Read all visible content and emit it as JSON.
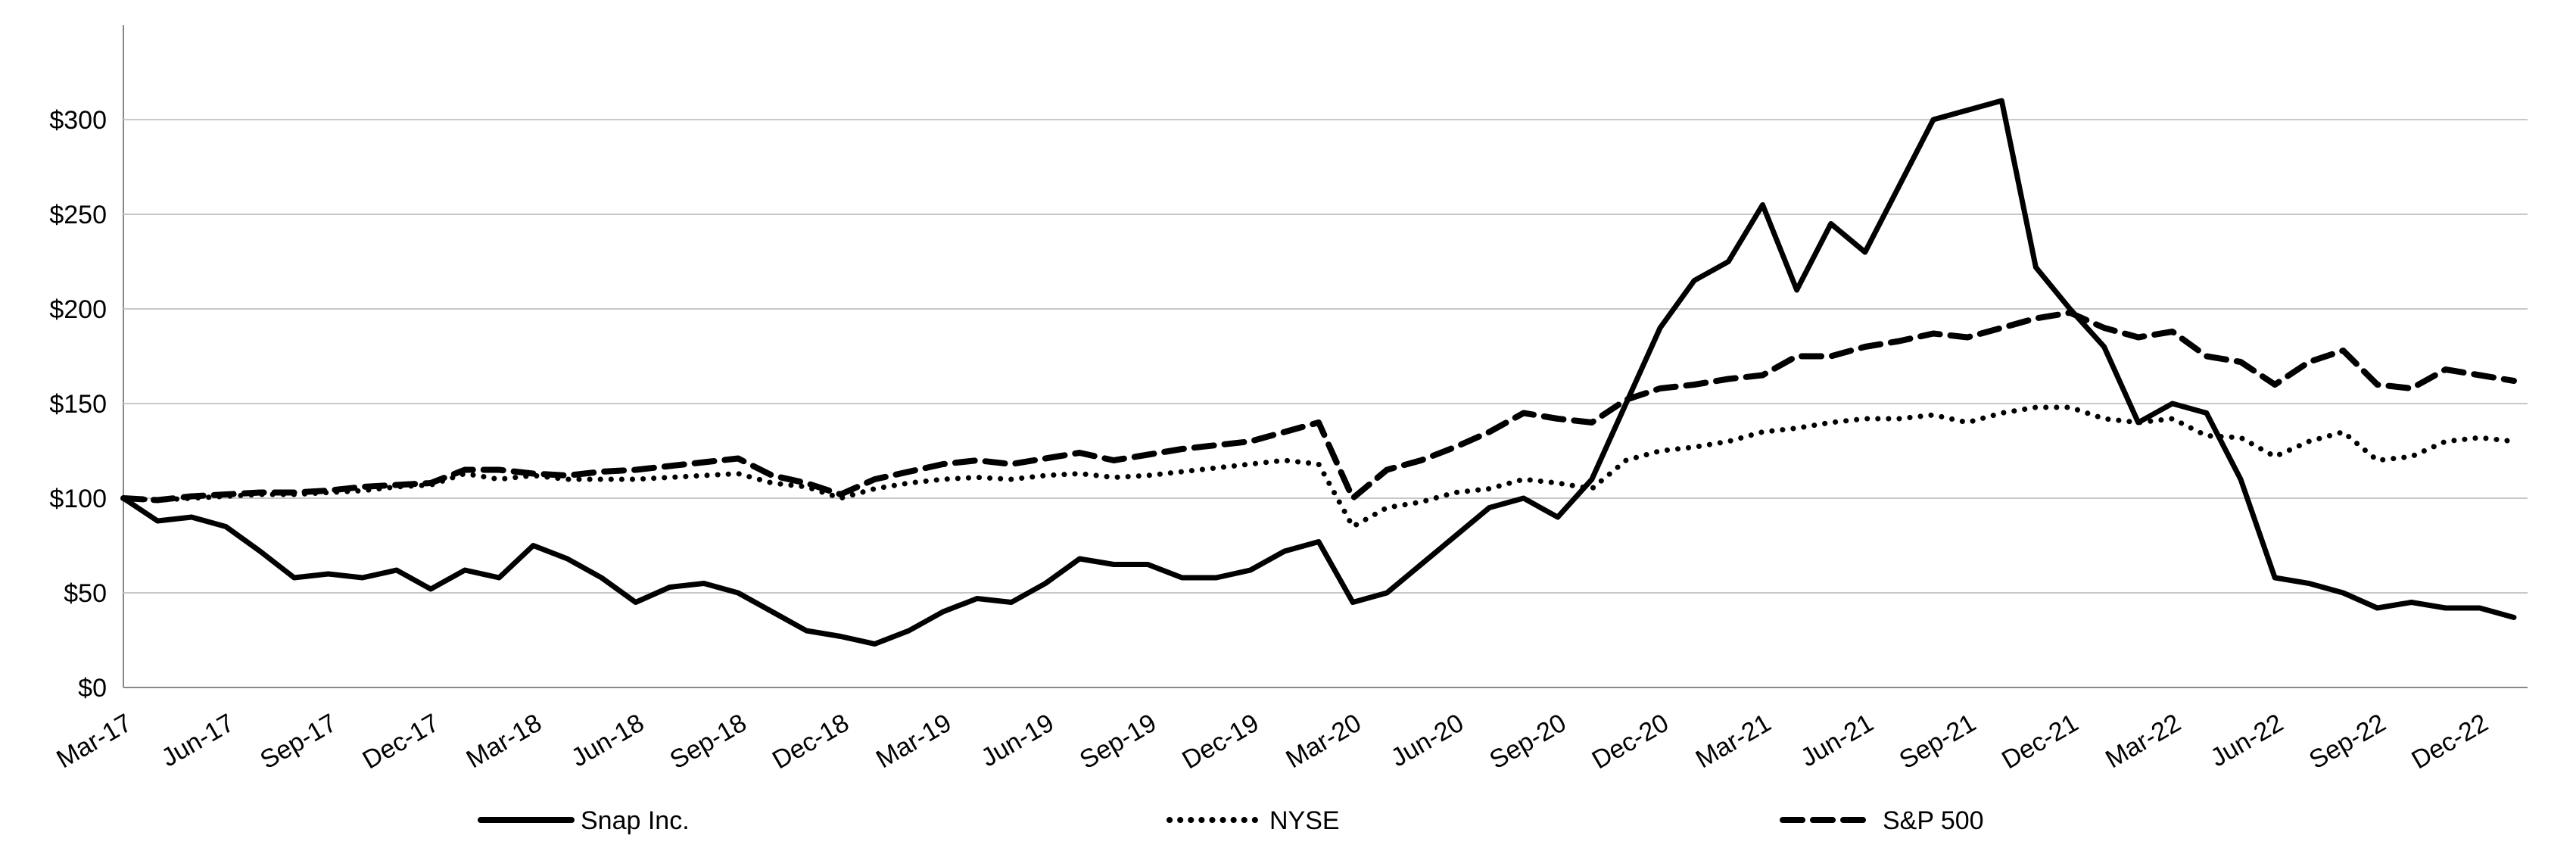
{
  "chart_data": {
    "type": "line",
    "title": "",
    "xlabel": "",
    "ylabel": "",
    "ylim": [
      0,
      350
    ],
    "grid": true,
    "legend_position": "bottom",
    "y_ticks": [
      0,
      50,
      100,
      150,
      200,
      250,
      300
    ],
    "y_tick_labels": [
      "$0",
      "$50",
      "$100",
      "$150",
      "$200",
      "$250",
      "$300"
    ],
    "x_tick_labels": [
      "Mar-17",
      "Jun-17",
      "Sep-17",
      "Dec-17",
      "Mar-18",
      "Jun-18",
      "Sep-18",
      "Dec-18",
      "Mar-19",
      "Jun-19",
      "Sep-19",
      "Dec-19",
      "Mar-20",
      "Jun-20",
      "Sep-20",
      "Dec-20",
      "Mar-21",
      "Jun-21",
      "Sep-21",
      "Dec-21",
      "Mar-22",
      "Jun-22",
      "Sep-22",
      "Dec-22"
    ],
    "x": [
      "Mar-17",
      "Apr-17",
      "May-17",
      "Jun-17",
      "Jul-17",
      "Aug-17",
      "Sep-17",
      "Oct-17",
      "Nov-17",
      "Dec-17",
      "Jan-18",
      "Feb-18",
      "Mar-18",
      "Apr-18",
      "May-18",
      "Jun-18",
      "Jul-18",
      "Aug-18",
      "Sep-18",
      "Oct-18",
      "Nov-18",
      "Dec-18",
      "Jan-19",
      "Feb-19",
      "Mar-19",
      "Apr-19",
      "May-19",
      "Jun-19",
      "Jul-19",
      "Aug-19",
      "Sep-19",
      "Oct-19",
      "Nov-19",
      "Dec-19",
      "Jan-20",
      "Feb-20",
      "Mar-20",
      "Apr-20",
      "May-20",
      "Jun-20",
      "Jul-20",
      "Aug-20",
      "Sep-20",
      "Oct-20",
      "Nov-20",
      "Dec-20",
      "Jan-21",
      "Feb-21",
      "Mar-21",
      "Apr-21",
      "May-21",
      "Jun-21",
      "Jul-21",
      "Aug-21",
      "Sep-21",
      "Oct-21",
      "Nov-21",
      "Dec-21",
      "Jan-22",
      "Feb-22",
      "Mar-22",
      "Apr-22",
      "May-22",
      "Jun-22",
      "Jul-22",
      "Aug-22",
      "Sep-22",
      "Oct-22",
      "Nov-22",
      "Dec-22",
      "Jan-23"
    ],
    "series": [
      {
        "name": "Snap Inc.",
        "style": "solid",
        "color": "#000000",
        "values": [
          100,
          88,
          90,
          85,
          72,
          58,
          60,
          58,
          62,
          52,
          62,
          58,
          75,
          68,
          58,
          45,
          53,
          55,
          50,
          40,
          30,
          27,
          23,
          30,
          40,
          47,
          45,
          55,
          68,
          65,
          65,
          58,
          58,
          62,
          72,
          77,
          45,
          50,
          65,
          80,
          95,
          100,
          90,
          110,
          150,
          190,
          215,
          225,
          255,
          210,
          245,
          230,
          265,
          300,
          305,
          310,
          222,
          200,
          180,
          140,
          150,
          145,
          110,
          58,
          55,
          50,
          42,
          45,
          42,
          42,
          37
        ]
      },
      {
        "name": "NYSE",
        "style": "dotted",
        "color": "#000000",
        "values": [
          100,
          99,
          100,
          101,
          102,
          102,
          103,
          104,
          106,
          107,
          113,
          110,
          112,
          110,
          110,
          110,
          111,
          112,
          113,
          108,
          106,
          100,
          105,
          108,
          110,
          111,
          110,
          112,
          113,
          111,
          112,
          114,
          116,
          118,
          120,
          118,
          85,
          95,
          98,
          103,
          105,
          110,
          108,
          105,
          120,
          125,
          127,
          130,
          135,
          137,
          140,
          142,
          142,
          144,
          140,
          145,
          148,
          148,
          142,
          140,
          142,
          133,
          132,
          122,
          130,
          135,
          120,
          122,
          130,
          132,
          130
        ]
      },
      {
        "name": "S&P 500",
        "style": "dashed",
        "color": "#000000",
        "values": [
          100,
          99,
          101,
          102,
          103,
          103,
          104,
          106,
          107,
          108,
          115,
          115,
          113,
          112,
          114,
          115,
          117,
          119,
          121,
          112,
          108,
          102,
          110,
          114,
          118,
          120,
          118,
          121,
          124,
          120,
          123,
          126,
          128,
          130,
          135,
          140,
          100,
          115,
          120,
          127,
          135,
          145,
          142,
          140,
          152,
          158,
          160,
          163,
          165,
          175,
          175,
          180,
          183,
          187,
          185,
          190,
          195,
          198,
          190,
          185,
          188,
          175,
          172,
          160,
          172,
          178,
          160,
          158,
          168,
          165,
          162
        ]
      }
    ]
  }
}
